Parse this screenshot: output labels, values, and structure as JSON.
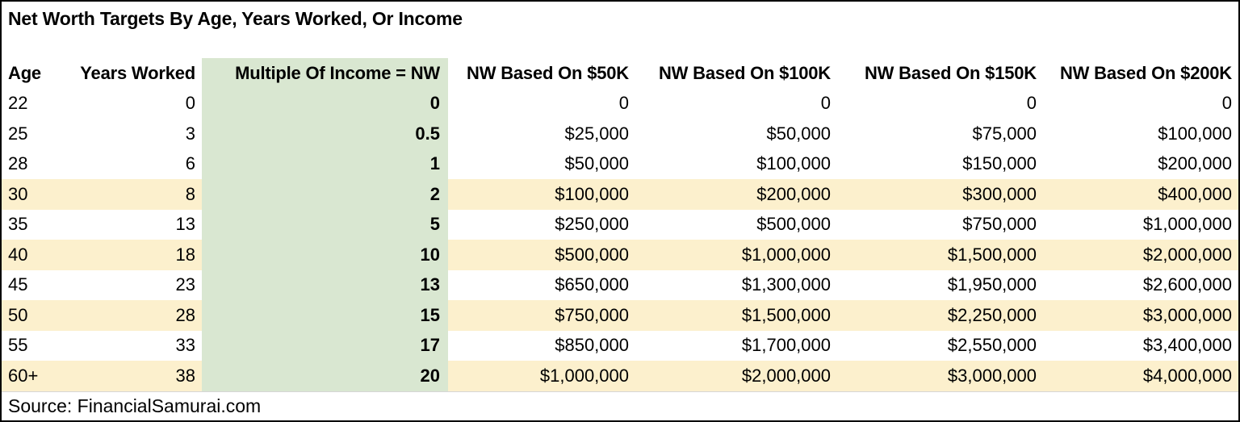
{
  "title": "Net Worth Targets By Age, Years Worked, Or Income",
  "source": "Source: FinancialSamurai.com",
  "colors": {
    "green_highlight": "#d9e7d1",
    "yellow_highlight": "#fcf0cd",
    "frame_border": "#000000",
    "text": "#000000"
  },
  "chart_data": {
    "type": "table",
    "title": "Net Worth Targets By Age, Years Worked, Or Income",
    "columns": [
      "Age",
      "Years Worked",
      "Multiple Of Income = NW",
      "NW Based On $50K",
      "NW Based On $100K",
      "NW Based On $150K",
      "NW Based On $200K"
    ],
    "rows": [
      [
        "22",
        "0",
        "0",
        "0",
        "0",
        "0",
        "0"
      ],
      [
        "25",
        "3",
        "0.5",
        "$25,000",
        "$50,000",
        "$75,000",
        "$100,000"
      ],
      [
        "28",
        "6",
        "1",
        "$50,000",
        "$100,000",
        "$150,000",
        "$200,000"
      ],
      [
        "30",
        "8",
        "2",
        "$100,000",
        "$200,000",
        "$300,000",
        "$400,000"
      ],
      [
        "35",
        "13",
        "5",
        "$250,000",
        "$500,000",
        "$750,000",
        "$1,000,000"
      ],
      [
        "40",
        "18",
        "10",
        "$500,000",
        "$1,000,000",
        "$1,500,000",
        "$2,000,000"
      ],
      [
        "45",
        "23",
        "13",
        "$650,000",
        "$1,300,000",
        "$1,950,000",
        "$2,600,000"
      ],
      [
        "50",
        "28",
        "15",
        "$750,000",
        "$1,500,000",
        "$2,250,000",
        "$3,000,000"
      ],
      [
        "55",
        "33",
        "17",
        "$850,000",
        "$1,700,000",
        "$2,550,000",
        "$3,400,000"
      ],
      [
        "60+",
        "38",
        "20",
        "$1,000,000",
        "$2,000,000",
        "$3,000,000",
        "$4,000,000"
      ]
    ],
    "highlighted_rows": [
      3,
      5,
      7,
      9
    ],
    "highlighted_column": 2,
    "legend_position": "none",
    "grid": false
  }
}
